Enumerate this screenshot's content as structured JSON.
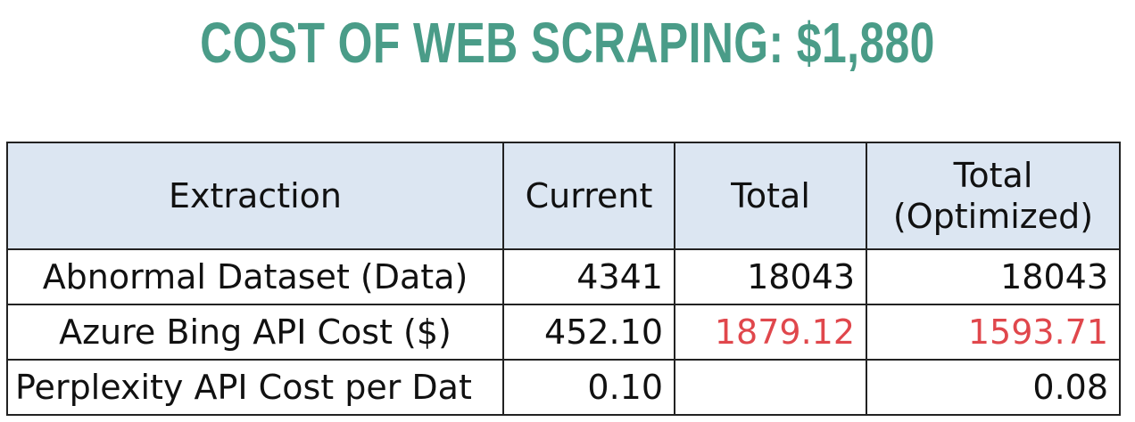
{
  "title": "COST OF WEB SCRAPING: $1,880",
  "colors": {
    "title": "#4a9c88",
    "header_bg": "#dce6f2",
    "highlight": "#e0474c"
  },
  "table": {
    "headers": {
      "extraction": "Extraction",
      "current": "Current",
      "total": "Total",
      "total_optimized_line1": "Total",
      "total_optimized_line2": "(Optimized)"
    },
    "rows": [
      {
        "label": "Abnormal Dataset (Data)",
        "current": "4341",
        "total": "18043",
        "total_optimized": "18043"
      },
      {
        "label": "Azure Bing API Cost ($)",
        "current": "452.10",
        "total": "1879.12",
        "total_optimized": "1593.71"
      },
      {
        "label": "Perplexity API Cost per Dat",
        "current": "0.10",
        "total": "",
        "total_optimized": "0.08"
      }
    ]
  }
}
